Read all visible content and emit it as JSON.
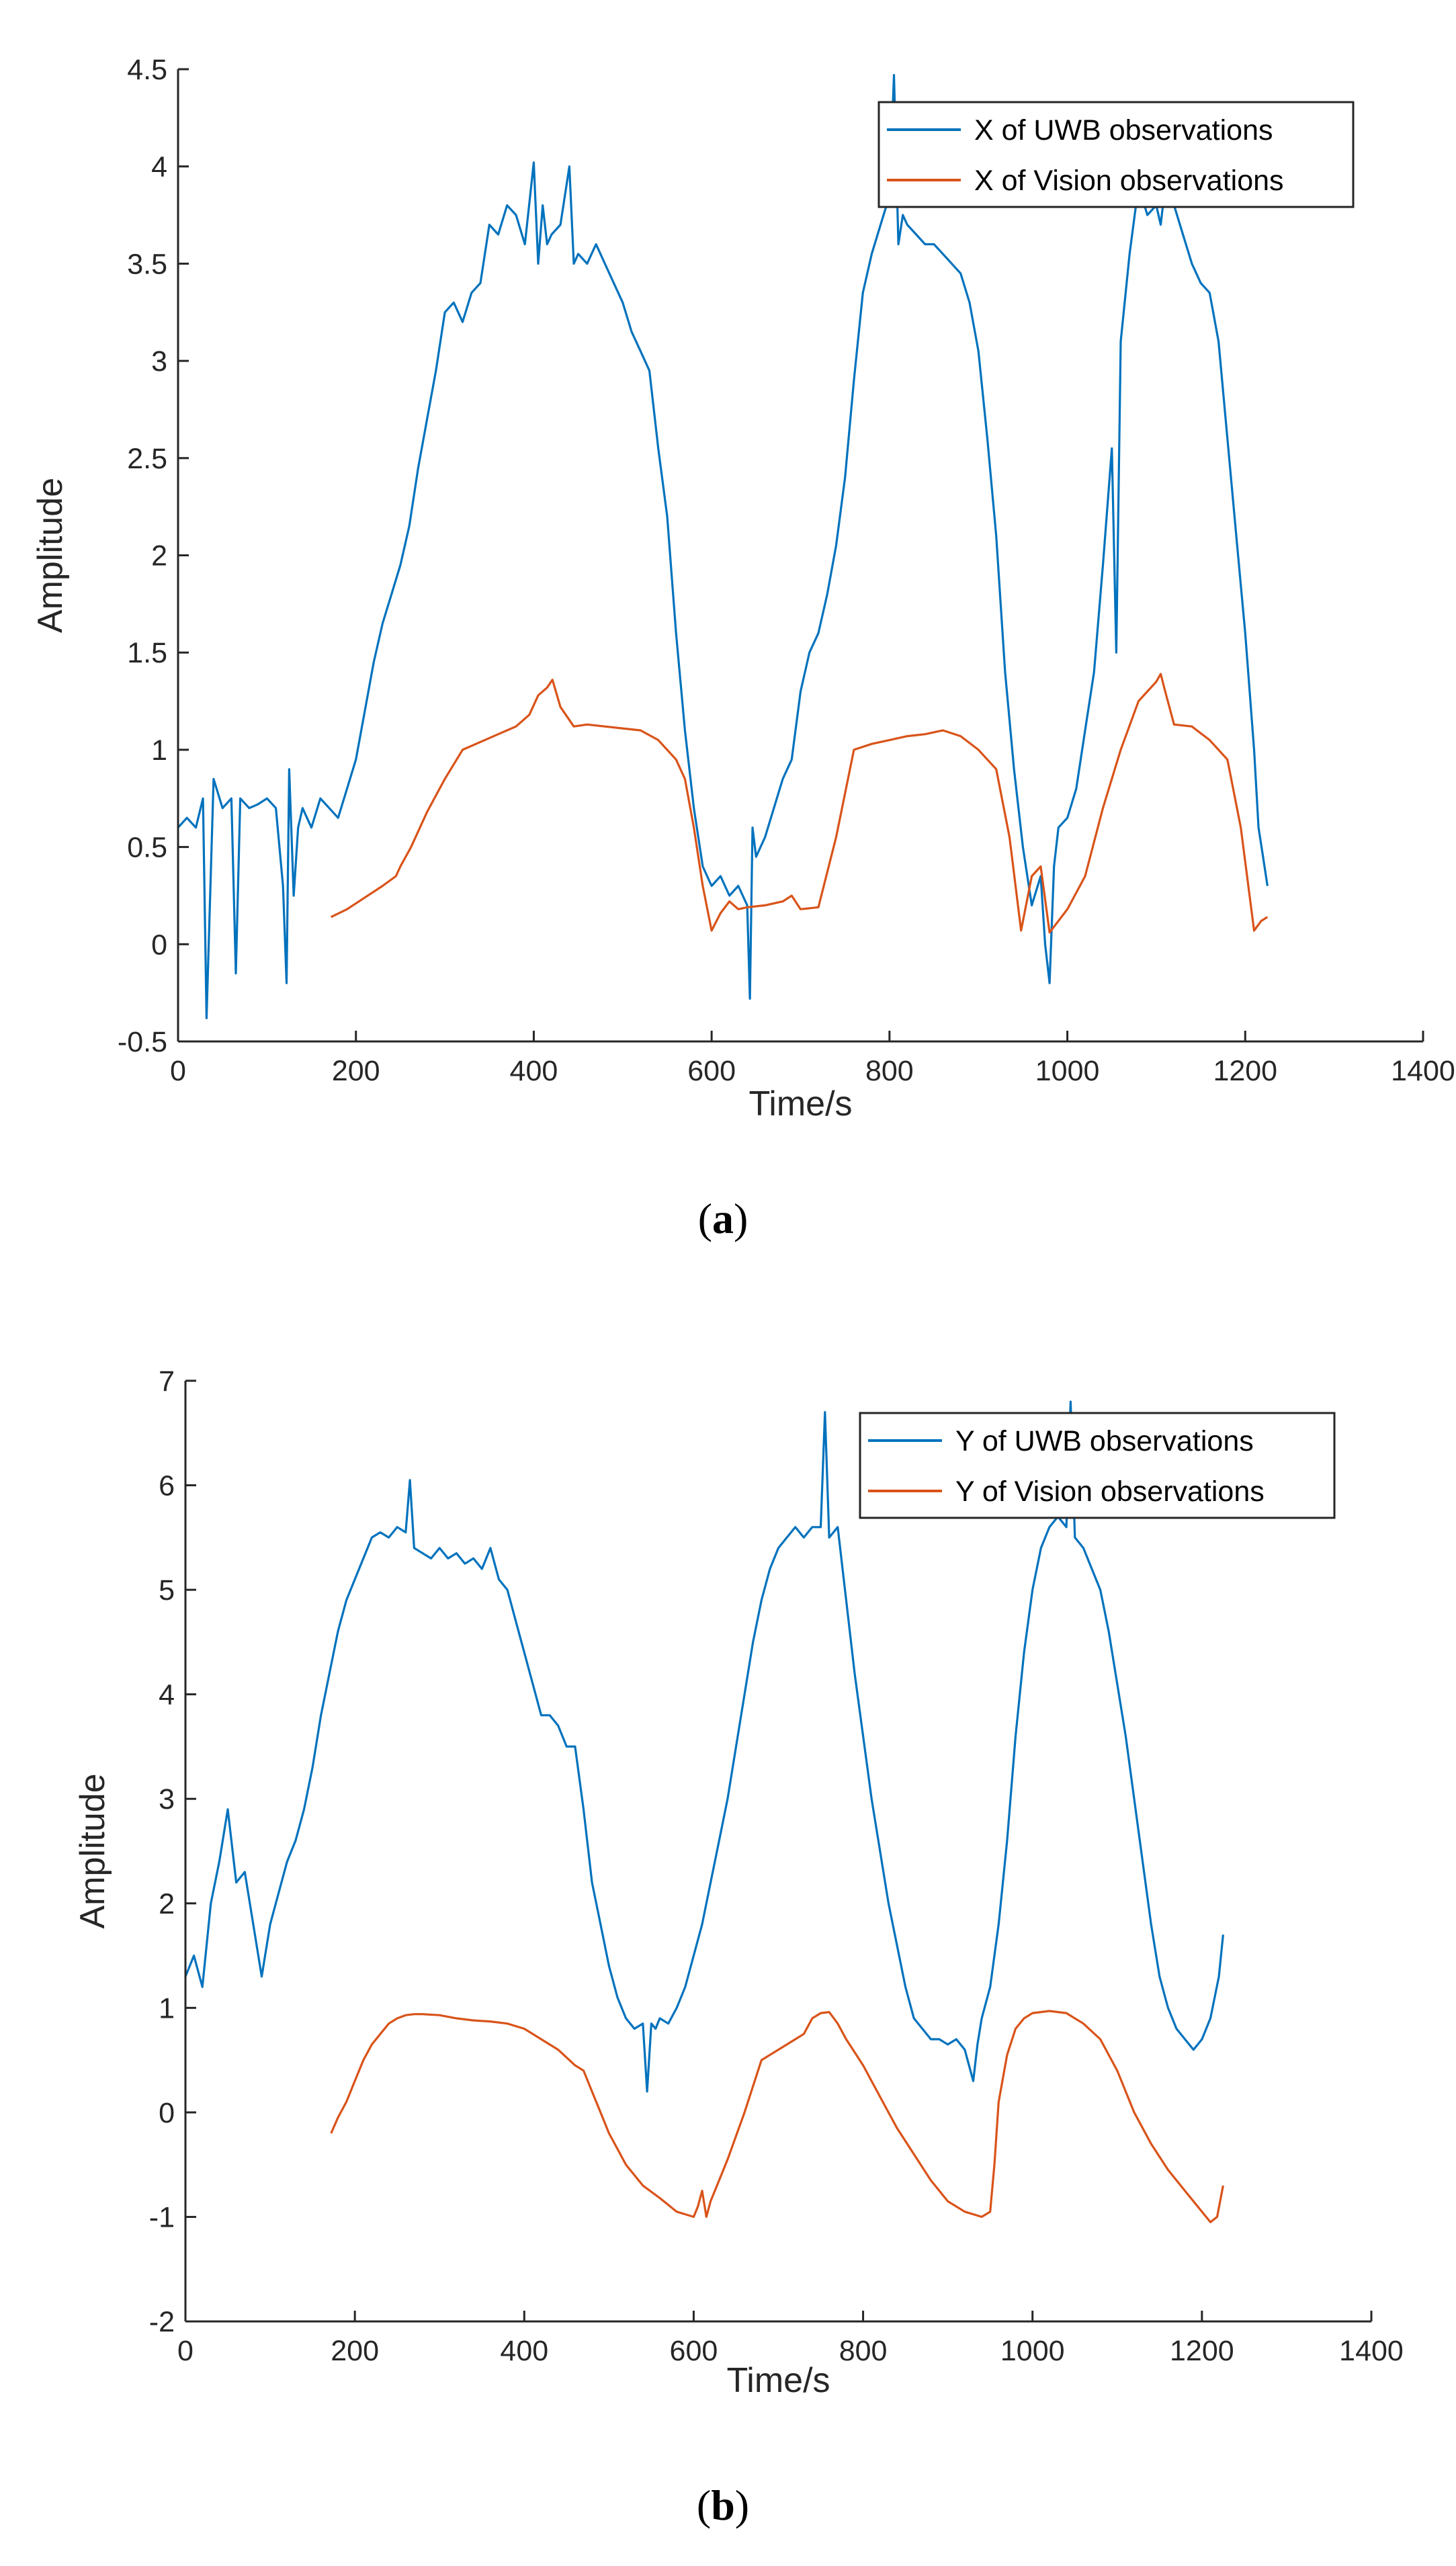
{
  "colors": {
    "uwb": "#0072BD",
    "vision": "#D95319",
    "axis": "#262626"
  },
  "chart_data": [
    {
      "type": "line",
      "panel_label": {
        "open": "(",
        "letter": "a",
        "close": ")"
      },
      "xlabel": "Time/s",
      "ylabel": "Amplitude",
      "xlim": [
        0,
        1400
      ],
      "ylim": [
        -0.5,
        4.5
      ],
      "xticks": [
        0,
        200,
        400,
        600,
        800,
        1000,
        1200,
        1400
      ],
      "xtick_labels": [
        "0",
        "200",
        "400",
        "600",
        "800",
        "1000",
        "1200",
        "1400"
      ],
      "yticks": [
        -0.5,
        0,
        0.5,
        1,
        1.5,
        2,
        2.5,
        3,
        3.5,
        4,
        4.5
      ],
      "ytick_labels": [
        "-0.5",
        "0",
        "0.5",
        "1",
        "1.5",
        "2",
        "2.5",
        "3",
        "3.5",
        "4",
        "4.5"
      ],
      "legend_position": "top-right",
      "series": [
        {
          "name": "X of UWB observations",
          "color_key": "uwb",
          "x": [
            0,
            10,
            20,
            28,
            32,
            40,
            50,
            60,
            65,
            70,
            80,
            90,
            100,
            110,
            118,
            122,
            125,
            130,
            135,
            140,
            150,
            160,
            170,
            180,
            190,
            200,
            210,
            220,
            230,
            240,
            250,
            260,
            270,
            280,
            290,
            300,
            310,
            320,
            330,
            340,
            350,
            360,
            370,
            380,
            390,
            400,
            405,
            410,
            415,
            420,
            430,
            440,
            445,
            450,
            460,
            470,
            480,
            490,
            500,
            510,
            520,
            530,
            540,
            550,
            560,
            570,
            580,
            590,
            600,
            610,
            620,
            630,
            640,
            643,
            646,
            650,
            660,
            670,
            680,
            690,
            700,
            710,
            720,
            730,
            740,
            750,
            760,
            770,
            780,
            790,
            800,
            805,
            810,
            815,
            820,
            830,
            840,
            850,
            860,
            870,
            880,
            890,
            900,
            910,
            920,
            930,
            940,
            950,
            960,
            970,
            975,
            980,
            985,
            990,
            1000,
            1010,
            1020,
            1030,
            1040,
            1050,
            1055,
            1060,
            1070,
            1080,
            1090,
            1100,
            1105,
            1110,
            1120,
            1130,
            1140,
            1150,
            1160,
            1170,
            1180,
            1190,
            1200,
            1210,
            1215,
            1220,
            1225
          ],
          "y": [
            0.6,
            0.65,
            0.6,
            0.75,
            -0.38,
            0.85,
            0.7,
            0.75,
            -0.15,
            0.75,
            0.7,
            0.72,
            0.75,
            0.7,
            0.3,
            -0.2,
            0.9,
            0.25,
            0.6,
            0.7,
            0.6,
            0.75,
            0.7,
            0.65,
            0.8,
            0.95,
            1.2,
            1.45,
            1.65,
            1.8,
            1.95,
            2.15,
            2.45,
            2.7,
            2.95,
            3.25,
            3.3,
            3.2,
            3.35,
            3.4,
            3.7,
            3.65,
            3.8,
            3.75,
            3.6,
            4.02,
            3.5,
            3.8,
            3.6,
            3.65,
            3.7,
            4.0,
            3.5,
            3.55,
            3.5,
            3.6,
            3.5,
            3.4,
            3.3,
            3.15,
            3.05,
            2.95,
            2.55,
            2.2,
            1.6,
            1.1,
            0.7,
            0.4,
            0.3,
            0.35,
            0.25,
            0.3,
            0.2,
            -0.28,
            0.6,
            0.45,
            0.55,
            0.7,
            0.85,
            0.95,
            1.3,
            1.5,
            1.6,
            1.8,
            2.05,
            2.4,
            2.9,
            3.35,
            3.55,
            3.7,
            3.85,
            4.47,
            3.6,
            3.75,
            3.7,
            3.65,
            3.6,
            3.6,
            3.55,
            3.5,
            3.45,
            3.3,
            3.05,
            2.6,
            2.1,
            1.4,
            0.9,
            0.5,
            0.2,
            0.35,
            0.0,
            -0.2,
            0.4,
            0.6,
            0.65,
            0.8,
            1.1,
            1.4,
            1.95,
            2.55,
            1.5,
            3.1,
            3.55,
            3.9,
            3.75,
            3.8,
            3.7,
            3.9,
            3.8,
            3.65,
            3.5,
            3.4,
            3.35,
            3.1,
            2.6,
            2.1,
            1.6,
            1.0,
            0.6,
            0.45,
            0.3
          ]
        },
        {
          "name": "X of Vision observations",
          "color_key": "vision",
          "x": [
            172,
            190,
            210,
            230,
            245,
            250,
            262,
            280,
            300,
            320,
            340,
            360,
            380,
            395,
            405,
            415,
            421,
            430,
            445,
            460,
            480,
            500,
            520,
            540,
            560,
            570,
            580,
            590,
            600,
            610,
            620,
            630,
            640,
            660,
            680,
            690,
            700,
            720,
            740,
            760,
            780,
            800,
            820,
            840,
            860,
            880,
            900,
            920,
            935,
            948,
            960,
            970,
            980,
            1000,
            1020,
            1040,
            1060,
            1080,
            1100,
            1105,
            1110,
            1120,
            1140,
            1160,
            1180,
            1195,
            1210,
            1218,
            1225
          ],
          "y": [
            0.14,
            0.18,
            0.24,
            0.3,
            0.35,
            0.4,
            0.5,
            0.68,
            0.85,
            1.0,
            1.04,
            1.08,
            1.12,
            1.18,
            1.28,
            1.32,
            1.36,
            1.22,
            1.12,
            1.13,
            1.12,
            1.11,
            1.1,
            1.05,
            0.95,
            0.85,
            0.6,
            0.3,
            0.07,
            0.16,
            0.22,
            0.18,
            0.19,
            0.2,
            0.22,
            0.25,
            0.18,
            0.19,
            0.55,
            1.0,
            1.03,
            1.05,
            1.07,
            1.08,
            1.1,
            1.07,
            1.0,
            0.9,
            0.55,
            0.07,
            0.35,
            0.4,
            0.06,
            0.18,
            0.35,
            0.7,
            1.0,
            1.25,
            1.35,
            1.39,
            1.3,
            1.13,
            1.12,
            1.05,
            0.95,
            0.6,
            0.07,
            0.12,
            0.14
          ]
        }
      ]
    },
    {
      "type": "line",
      "panel_label": {
        "open": "(",
        "letter": "b",
        "close": ")"
      },
      "xlabel": "Time/s",
      "ylabel": "Amplitude",
      "xlim": [
        0,
        1400
      ],
      "ylim": [
        -2,
        7
      ],
      "xticks": [
        0,
        200,
        400,
        600,
        800,
        1000,
        1200,
        1400
      ],
      "xtick_labels": [
        "0",
        "200",
        "400",
        "600",
        "800",
        "1000",
        "1200",
        "1400"
      ],
      "yticks": [
        -2,
        -1,
        0,
        1,
        2,
        3,
        4,
        5,
        6,
        7
      ],
      "ytick_labels": [
        "-2",
        "-1",
        "0",
        "1",
        "2",
        "3",
        "4",
        "5",
        "6",
        "7"
      ],
      "legend_position": "top-right",
      "series": [
        {
          "name": "Y of UWB observations",
          "color_key": "uwb",
          "x": [
            0,
            10,
            20,
            30,
            40,
            50,
            60,
            70,
            80,
            90,
            100,
            110,
            120,
            130,
            140,
            150,
            160,
            170,
            180,
            190,
            200,
            210,
            220,
            230,
            240,
            250,
            260,
            265,
            270,
            280,
            290,
            300,
            310,
            320,
            330,
            340,
            350,
            360,
            370,
            380,
            390,
            400,
            410,
            420,
            430,
            440,
            450,
            460,
            470,
            480,
            490,
            500,
            510,
            520,
            530,
            540,
            545,
            550,
            555,
            560,
            570,
            580,
            590,
            600,
            610,
            620,
            630,
            640,
            650,
            660,
            670,
            680,
            690,
            700,
            710,
            720,
            730,
            740,
            750,
            755,
            760,
            770,
            780,
            790,
            800,
            810,
            820,
            830,
            840,
            850,
            860,
            870,
            880,
            890,
            900,
            910,
            920,
            930,
            935,
            940,
            950,
            960,
            970,
            980,
            990,
            1000,
            1010,
            1020,
            1030,
            1040,
            1045,
            1050,
            1060,
            1070,
            1080,
            1090,
            1100,
            1110,
            1120,
            1130,
            1140,
            1150,
            1160,
            1170,
            1180,
            1190,
            1200,
            1210,
            1220,
            1225
          ],
          "y": [
            1.3,
            1.5,
            1.2,
            2.0,
            2.4,
            2.9,
            2.2,
            2.3,
            1.8,
            1.3,
            1.8,
            2.1,
            2.4,
            2.6,
            2.9,
            3.3,
            3.8,
            4.2,
            4.6,
            4.9,
            5.1,
            5.3,
            5.5,
            5.55,
            5.5,
            5.6,
            5.55,
            6.05,
            5.4,
            5.35,
            5.3,
            5.4,
            5.3,
            5.35,
            5.25,
            5.3,
            5.2,
            5.4,
            5.1,
            5.0,
            4.7,
            4.4,
            4.1,
            3.8,
            3.8,
            3.7,
            3.5,
            3.5,
            2.9,
            2.2,
            1.8,
            1.4,
            1.1,
            0.9,
            0.8,
            0.85,
            0.2,
            0.85,
            0.8,
            0.9,
            0.85,
            1.0,
            1.2,
            1.5,
            1.8,
            2.2,
            2.6,
            3.0,
            3.5,
            4.0,
            4.5,
            4.9,
            5.2,
            5.4,
            5.5,
            5.6,
            5.5,
            5.6,
            5.6,
            6.7,
            5.5,
            5.6,
            4.9,
            4.2,
            3.6,
            3.0,
            2.5,
            2.0,
            1.6,
            1.2,
            0.9,
            0.8,
            0.7,
            0.7,
            0.65,
            0.7,
            0.6,
            0.3,
            0.65,
            0.9,
            1.2,
            1.8,
            2.6,
            3.6,
            4.4,
            5.0,
            5.4,
            5.6,
            5.7,
            5.6,
            6.8,
            5.5,
            5.4,
            5.2,
            5.0,
            4.6,
            4.1,
            3.6,
            3.0,
            2.4,
            1.8,
            1.3,
            1.0,
            0.8,
            0.7,
            0.6,
            0.7,
            0.9,
            1.3,
            1.7
          ]
        },
        {
          "name": "Y of Vision observations",
          "color_key": "vision",
          "x": [
            172,
            180,
            190,
            200,
            210,
            220,
            230,
            240,
            250,
            260,
            270,
            280,
            300,
            320,
            340,
            360,
            380,
            400,
            420,
            440,
            460,
            470,
            480,
            490,
            500,
            510,
            520,
            530,
            540,
            560,
            580,
            600,
            605,
            610,
            615,
            620,
            630,
            640,
            660,
            680,
            690,
            700,
            720,
            730,
            740,
            750,
            760,
            770,
            780,
            800,
            820,
            840,
            860,
            880,
            900,
            920,
            940,
            950,
            955,
            960,
            970,
            980,
            990,
            1000,
            1020,
            1040,
            1060,
            1080,
            1100,
            1120,
            1140,
            1160,
            1180,
            1200,
            1210,
            1218,
            1225
          ],
          "y": [
            -0.2,
            -0.05,
            0.1,
            0.3,
            0.5,
            0.65,
            0.75,
            0.85,
            0.9,
            0.93,
            0.94,
            0.94,
            0.93,
            0.9,
            0.88,
            0.87,
            0.85,
            0.8,
            0.7,
            0.6,
            0.45,
            0.4,
            0.2,
            0.0,
            -0.2,
            -0.35,
            -0.5,
            -0.6,
            -0.7,
            -0.82,
            -0.95,
            -1.0,
            -0.9,
            -0.75,
            -1.0,
            -0.85,
            -0.65,
            -0.45,
            0.0,
            0.5,
            0.55,
            0.6,
            0.7,
            0.75,
            0.9,
            0.95,
            0.96,
            0.85,
            0.7,
            0.45,
            0.15,
            -0.15,
            -0.4,
            -0.65,
            -0.85,
            -0.95,
            -1.0,
            -0.95,
            -0.5,
            0.1,
            0.55,
            0.8,
            0.9,
            0.95,
            0.97,
            0.95,
            0.85,
            0.7,
            0.4,
            0.0,
            -0.3,
            -0.55,
            -0.75,
            -0.95,
            -1.05,
            -1.0,
            -0.7
          ]
        }
      ]
    }
  ]
}
